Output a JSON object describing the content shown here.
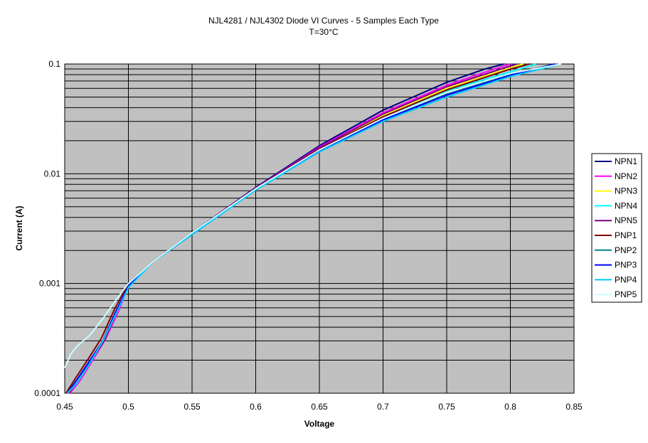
{
  "chart_data": {
    "type": "line",
    "title": "NJL4281 / NJL4302 Diode VI Curves - 5 Samples Each Type",
    "subtitle": "T=30°C",
    "xlabel": "Voltage",
    "ylabel": "Current (A)",
    "xlim": [
      0.45,
      0.85
    ],
    "ylim": [
      0.0001,
      0.1
    ],
    "yscale": "log",
    "grid": true,
    "legend_position": "right",
    "plot_background": "#c0c0c0",
    "x_ticks": [
      "0.45",
      "0.5",
      "0.55",
      "0.6",
      "0.65",
      "0.7",
      "0.75",
      "0.8",
      "0.85"
    ],
    "y_ticks": [
      "0.0001",
      "0.001",
      "0.01",
      "0.1"
    ],
    "series": [
      {
        "name": "NPN1",
        "color": "#000080",
        "x": [
          0.452,
          0.46,
          0.47,
          0.48,
          0.49,
          0.5,
          0.52,
          0.55,
          0.6,
          0.65,
          0.7,
          0.75,
          0.78,
          0.795
        ],
        "y": [
          0.0001,
          0.000135,
          0.0002,
          0.0003,
          0.00055,
          0.00095,
          0.0016,
          0.0029,
          0.0075,
          0.018,
          0.038,
          0.068,
          0.09,
          0.1
        ]
      },
      {
        "name": "NPN2",
        "color": "#ff00ff",
        "x": [
          0.454,
          0.462,
          0.472,
          0.482,
          0.492,
          0.5,
          0.52,
          0.55,
          0.6,
          0.65,
          0.7,
          0.75,
          0.785,
          0.8
        ],
        "y": [
          0.0001,
          0.00013,
          0.0002,
          0.00031,
          0.00055,
          0.00095,
          0.0016,
          0.0029,
          0.0074,
          0.0175,
          0.036,
          0.064,
          0.088,
          0.1
        ]
      },
      {
        "name": "NPN3",
        "color": "#ffff00",
        "x": [
          0.453,
          0.461,
          0.471,
          0.481,
          0.491,
          0.5,
          0.52,
          0.55,
          0.6,
          0.65,
          0.7,
          0.75,
          0.79,
          0.81
        ],
        "y": [
          0.0001,
          0.00013,
          0.0002,
          0.0003,
          0.00055,
          0.00095,
          0.0016,
          0.0029,
          0.0073,
          0.017,
          0.034,
          0.06,
          0.085,
          0.1
        ]
      },
      {
        "name": "NPN4",
        "color": "#00ffff",
        "x": [
          0.452,
          0.46,
          0.47,
          0.48,
          0.49,
          0.5,
          0.52,
          0.55,
          0.6,
          0.65,
          0.7,
          0.75,
          0.8,
          0.82
        ],
        "y": [
          0.0001,
          0.000135,
          0.0002,
          0.0003,
          0.00055,
          0.00095,
          0.0016,
          0.0029,
          0.0072,
          0.0168,
          0.033,
          0.057,
          0.085,
          0.1
        ]
      },
      {
        "name": "NPN5",
        "color": "#800080",
        "x": [
          0.453,
          0.461,
          0.471,
          0.481,
          0.491,
          0.5,
          0.52,
          0.55,
          0.6,
          0.65,
          0.7,
          0.75,
          0.79,
          0.805
        ],
        "y": [
          0.0001,
          0.00013,
          0.0002,
          0.0003,
          0.00055,
          0.00095,
          0.0016,
          0.0029,
          0.0074,
          0.0172,
          0.035,
          0.062,
          0.088,
          0.1
        ]
      },
      {
        "name": "PNP1",
        "color": "#800000",
        "x": [
          0.451,
          0.459,
          0.469,
          0.479,
          0.489,
          0.5,
          0.52,
          0.55,
          0.6,
          0.65,
          0.7,
          0.75,
          0.8,
          0.815
        ],
        "y": [
          0.0001,
          0.00014,
          0.00021,
          0.00032,
          0.00058,
          0.001,
          0.0016,
          0.0029,
          0.0073,
          0.0168,
          0.033,
          0.058,
          0.09,
          0.1
        ]
      },
      {
        "name": "PNP2",
        "color": "#008080",
        "x": [
          0.452,
          0.46,
          0.47,
          0.48,
          0.49,
          0.5,
          0.52,
          0.55,
          0.6,
          0.65,
          0.7,
          0.75,
          0.8,
          0.835
        ],
        "y": [
          0.0001,
          0.000135,
          0.0002,
          0.0003,
          0.00055,
          0.00095,
          0.0016,
          0.0028,
          0.0072,
          0.0162,
          0.031,
          0.053,
          0.08,
          0.1
        ]
      },
      {
        "name": "PNP3",
        "color": "#0000ff",
        "x": [
          0.452,
          0.46,
          0.47,
          0.48,
          0.49,
          0.5,
          0.52,
          0.55,
          0.6,
          0.65,
          0.7,
          0.75,
          0.8,
          0.835
        ],
        "y": [
          0.0001,
          0.000135,
          0.0002,
          0.0003,
          0.00055,
          0.00095,
          0.0016,
          0.0028,
          0.0072,
          0.016,
          0.031,
          0.052,
          0.079,
          0.1
        ]
      },
      {
        "name": "PNP4",
        "color": "#00ccff",
        "x": [
          0.452,
          0.46,
          0.47,
          0.48,
          0.49,
          0.5,
          0.52,
          0.55,
          0.6,
          0.65,
          0.7,
          0.75,
          0.8,
          0.84
        ],
        "y": [
          0.0001,
          0.000125,
          0.00019,
          0.0003,
          0.00052,
          0.00092,
          0.0016,
          0.0028,
          0.0071,
          0.0158,
          0.03,
          0.05,
          0.077,
          0.1
        ]
      },
      {
        "name": "PNP5",
        "color": "#ccffff",
        "x": [
          0.45,
          0.455,
          0.46,
          0.47,
          0.48,
          0.49,
          0.5,
          0.52,
          0.55,
          0.6,
          0.65,
          0.7,
          0.75,
          0.8,
          0.84
        ],
        "y": [
          0.00017,
          0.00023,
          0.00027,
          0.00034,
          0.00048,
          0.0007,
          0.001,
          0.0016,
          0.0029,
          0.0073,
          0.0165,
          0.032,
          0.055,
          0.082,
          0.1
        ]
      }
    ]
  }
}
